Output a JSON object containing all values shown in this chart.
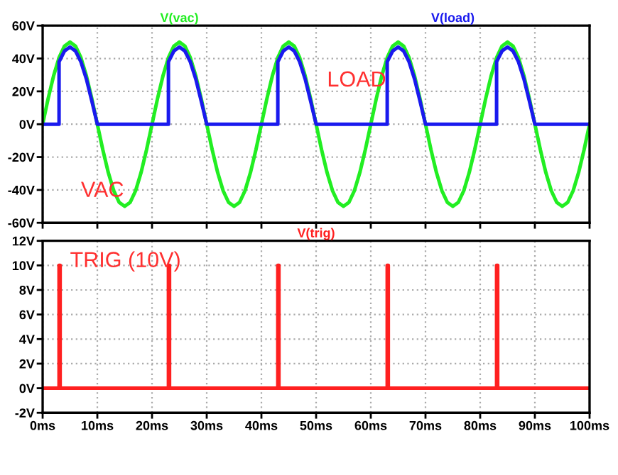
{
  "chart_data": [
    {
      "type": "line",
      "xlim": [
        0,
        100
      ],
      "xticks": [
        0,
        10,
        20,
        30,
        40,
        50,
        60,
        70,
        80,
        90,
        100
      ],
      "tick_labels": "y",
      "ylim": [
        -60,
        60
      ],
      "yticks": [
        {
          "value": -60,
          "label": "-60V"
        },
        {
          "value": -40,
          "label": "-40V"
        },
        {
          "value": -20,
          "label": "-20V"
        },
        {
          "value": 0,
          "label": "0V"
        },
        {
          "value": 20,
          "label": "20V"
        },
        {
          "value": 40,
          "label": "40V"
        },
        {
          "value": 60,
          "label": "60V"
        }
      ],
      "grid": true,
      "annotations": [
        "LOAD",
        "VAC"
      ],
      "series": [
        {
          "name": "V(vac)",
          "color": "#22ee22",
          "x": [
            0,
            1,
            2,
            3,
            4,
            5,
            6,
            7,
            8,
            9,
            10,
            11,
            12,
            13,
            14,
            15,
            16,
            17,
            18,
            19,
            20,
            21,
            22,
            23,
            24,
            25,
            26,
            27,
            28,
            29,
            30,
            31,
            32,
            33,
            34,
            35,
            36,
            37,
            38,
            39,
            40,
            41,
            42,
            43,
            44,
            45,
            46,
            47,
            48,
            49,
            50,
            51,
            52,
            53,
            54,
            55,
            56,
            57,
            58,
            59,
            60,
            61,
            62,
            63,
            64,
            65,
            66,
            67,
            68,
            69,
            70,
            71,
            72,
            73,
            74,
            75,
            76,
            77,
            78,
            79,
            80,
            81,
            82,
            83,
            84,
            85,
            86,
            87,
            88,
            89,
            90,
            91,
            92,
            93,
            94,
            95,
            96,
            97,
            98,
            99,
            100
          ],
          "values": [
            0,
            15.5,
            29.4,
            40.5,
            47.6,
            50,
            47.6,
            40.5,
            29.4,
            15.5,
            0,
            -15.5,
            -29.4,
            -40.5,
            -47.6,
            -50,
            -47.6,
            -40.5,
            -29.4,
            -15.5,
            0,
            15.5,
            29.4,
            40.5,
            47.6,
            50,
            47.6,
            40.5,
            29.4,
            15.5,
            0,
            -15.5,
            -29.4,
            -40.5,
            -47.6,
            -50,
            -47.6,
            -40.5,
            -29.4,
            -15.5,
            0,
            15.5,
            29.4,
            40.5,
            47.6,
            50,
            47.6,
            40.5,
            29.4,
            15.5,
            0,
            -15.5,
            -29.4,
            -40.5,
            -47.6,
            -50,
            -47.6,
            -40.5,
            -29.4,
            -15.5,
            0,
            15.5,
            29.4,
            40.5,
            47.6,
            50,
            47.6,
            40.5,
            29.4,
            15.5,
            0,
            -15.5,
            -29.4,
            -40.5,
            -47.6,
            -50,
            -47.6,
            -40.5,
            -29.4,
            -15.5,
            0,
            15.5,
            29.4,
            40.5,
            47.6,
            50,
            47.6,
            40.5,
            29.4,
            15.5,
            0,
            -15.5,
            -29.4,
            -40.5,
            -47.6,
            -50,
            -47.6,
            -40.5,
            -29.4,
            -15.5,
            0
          ]
        },
        {
          "name": "V(load)",
          "color": "#1a1aee",
          "x": [
            0,
            3,
            3,
            4,
            5,
            6,
            7,
            8,
            9,
            10,
            23,
            23,
            24,
            25,
            26,
            27,
            28,
            29,
            30,
            43,
            43,
            44,
            45,
            46,
            47,
            48,
            49,
            50,
            63,
            63,
            64,
            65,
            66,
            67,
            68,
            69,
            70,
            83,
            83,
            84,
            85,
            86,
            87,
            88,
            89,
            90,
            100
          ],
          "values": [
            0,
            0,
            38,
            44.6,
            47,
            44.6,
            38,
            27.5,
            14,
            0,
            0,
            38,
            44.6,
            47,
            44.6,
            38,
            27.5,
            14,
            0,
            0,
            38,
            44.6,
            47,
            44.6,
            38,
            27.5,
            14,
            0,
            0,
            38,
            44.6,
            47,
            44.6,
            38,
            27.5,
            14,
            0,
            0,
            38,
            44.6,
            47,
            44.6,
            38,
            27.5,
            14,
            0,
            0
          ]
        }
      ]
    },
    {
      "type": "line",
      "xlim": [
        0,
        100
      ],
      "xticks": [
        {
          "value": 0,
          "label": "0ms"
        },
        {
          "value": 10,
          "label": "10ms"
        },
        {
          "value": 20,
          "label": "20ms"
        },
        {
          "value": 30,
          "label": "30ms"
        },
        {
          "value": 40,
          "label": "40ms"
        },
        {
          "value": 50,
          "label": "50ms"
        },
        {
          "value": 60,
          "label": "60ms"
        },
        {
          "value": 70,
          "label": "70ms"
        },
        {
          "value": 80,
          "label": "80ms"
        },
        {
          "value": 90,
          "label": "90ms"
        },
        {
          "value": 100,
          "label": "100ms"
        }
      ],
      "ylim": [
        -2,
        12
      ],
      "yticks": [
        {
          "value": -2,
          "label": "-2V"
        },
        {
          "value": 0,
          "label": "0V"
        },
        {
          "value": 2,
          "label": "2V"
        },
        {
          "value": 4,
          "label": "4V"
        },
        {
          "value": 6,
          "label": "6V"
        },
        {
          "value": 8,
          "label": "8V"
        },
        {
          "value": 10,
          "label": "10V"
        },
        {
          "value": 12,
          "label": "12V"
        }
      ],
      "grid": true,
      "annotations": [
        "TRIG (10V)"
      ],
      "series": [
        {
          "name": "V(trig)",
          "color": "#ff2020",
          "x": [
            0,
            3,
            3,
            3.2,
            3.2,
            23,
            23,
            23.2,
            23.2,
            43,
            43,
            43.2,
            43.2,
            63,
            63,
            63.2,
            63.2,
            83,
            83,
            83.2,
            83.2,
            100
          ],
          "values": [
            0,
            0,
            10,
            10,
            0,
            0,
            10,
            10,
            0,
            0,
            10,
            10,
            0,
            0,
            10,
            10,
            0,
            0,
            10,
            10,
            0,
            0
          ]
        }
      ]
    }
  ]
}
